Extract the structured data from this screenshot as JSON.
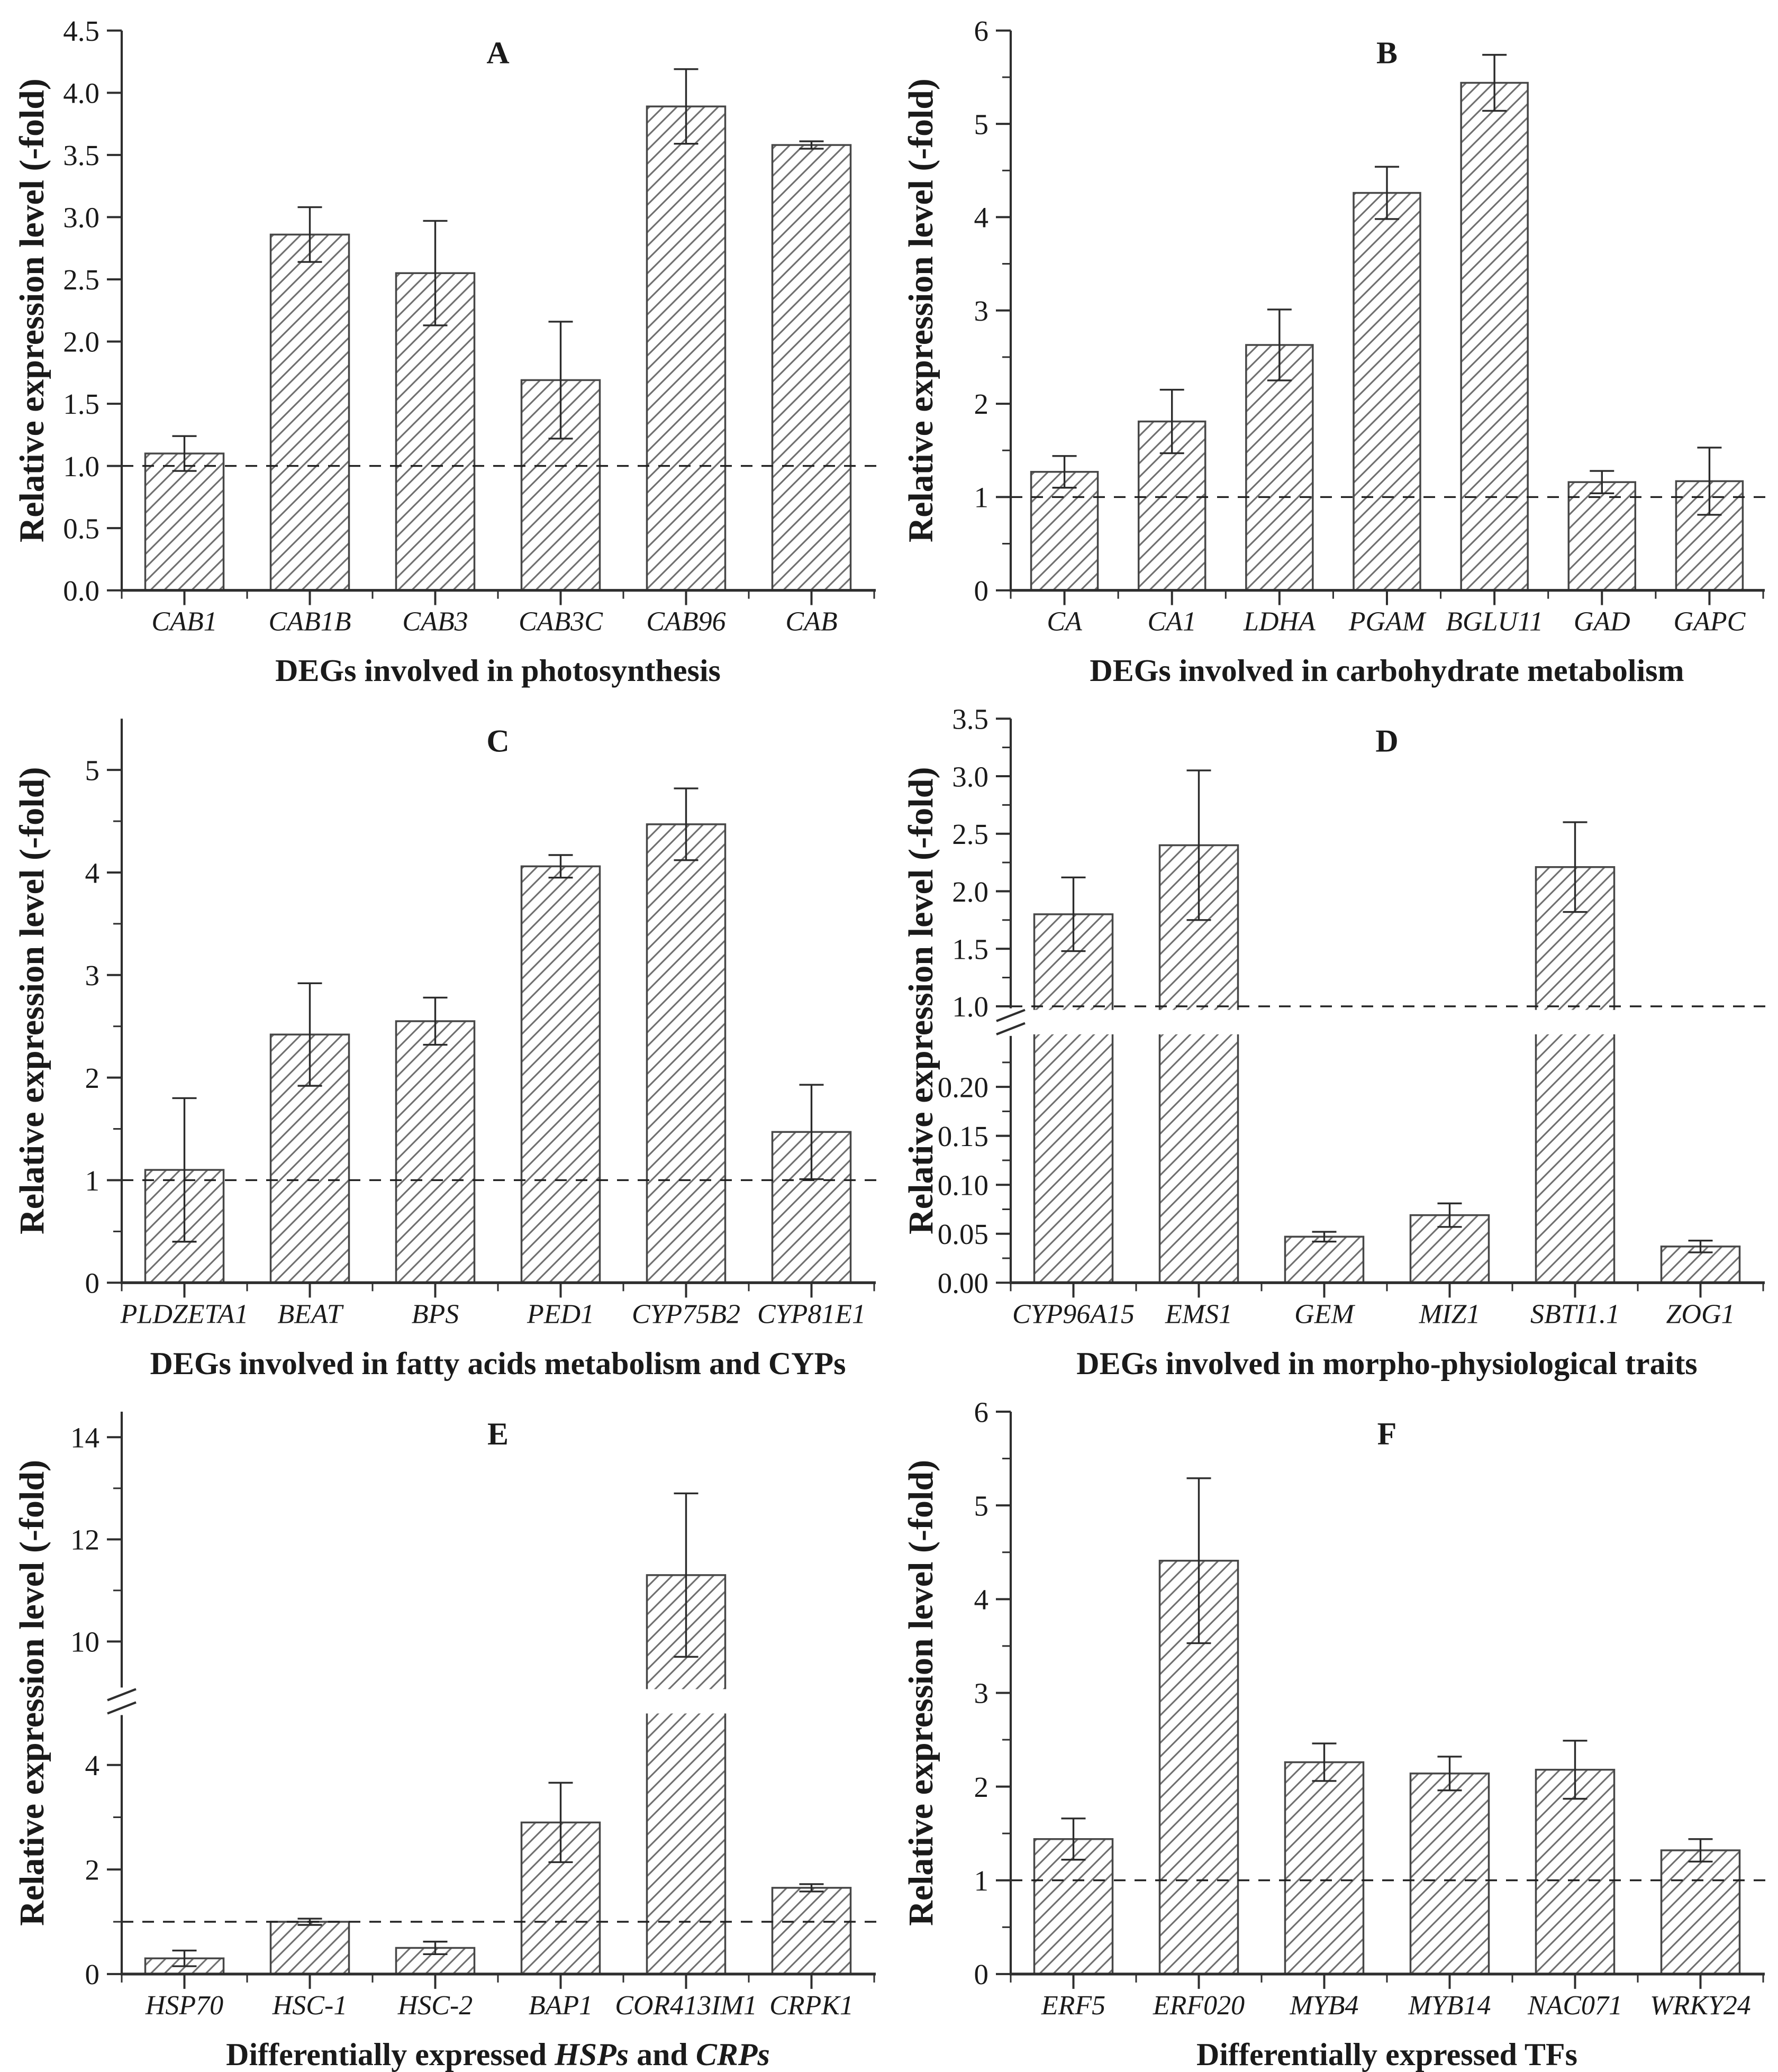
{
  "figure": {
    "background": "#ffffff",
    "text_color": "#1a1a1a",
    "axis_color": "#2e2e2e",
    "bar_fill": "#ffffff",
    "bar_stroke": "#474747",
    "hatch_color": "#6f6f6f",
    "error_color": "#2b2b2b",
    "baseline_color": "#1f1f1f"
  },
  "chart_data": [
    {
      "panel": "A",
      "type": "bar",
      "title": "A",
      "categories": [
        "CAB1",
        "CAB1B",
        "CAB3",
        "CAB3C",
        "CAB96",
        "CAB"
      ],
      "values": [
        1.1,
        2.86,
        2.55,
        1.69,
        3.89,
        3.58
      ],
      "errors": [
        0.14,
        0.22,
        0.42,
        0.47,
        0.3,
        0.03
      ],
      "xlabel": "DEGs involved in photosynthesis",
      "ylabel": "Relative expression level (-fold)",
      "baseline": 1.0,
      "y_axis": {
        "gap_frac": 0,
        "segments": [
          {
            "min": 0,
            "max": 4.5,
            "ticks": [
              0,
              0.5,
              1,
              1.5,
              2,
              2.5,
              3,
              3.5,
              4,
              4.5
            ],
            "minor": [],
            "decimals": 1,
            "frac": 1
          }
        ]
      }
    },
    {
      "panel": "B",
      "type": "bar",
      "title": "B",
      "categories": [
        "CA",
        "CA1",
        "LDHA",
        "PGAM",
        "BGLU11",
        "GAD",
        "GAPC"
      ],
      "values": [
        1.27,
        1.81,
        2.63,
        4.26,
        5.44,
        1.16,
        1.17
      ],
      "errors": [
        0.17,
        0.34,
        0.38,
        0.28,
        0.3,
        0.12,
        0.36
      ],
      "xlabel": "DEGs involved in carbohydrate metabolism",
      "ylabel": "Relative expression level (-fold)",
      "baseline": 1.0,
      "y_axis": {
        "gap_frac": 0,
        "segments": [
          {
            "min": 0,
            "max": 6,
            "ticks": [
              0,
              1,
              2,
              3,
              4,
              5,
              6
            ],
            "minor": [
              0.5,
              1.5,
              2.5,
              3.5,
              4.5,
              5.5
            ],
            "decimals": 0,
            "frac": 1
          }
        ]
      }
    },
    {
      "panel": "C",
      "type": "bar",
      "title": "C",
      "categories": [
        "PLDZETA1",
        "BEAT",
        "BPS",
        "PED1",
        "CYP75B2",
        "CYP81E1"
      ],
      "values": [
        1.1,
        2.42,
        2.55,
        4.06,
        4.47,
        1.47
      ],
      "errors": [
        0.7,
        0.5,
        0.23,
        0.11,
        0.35,
        0.46
      ],
      "xlabel": "DEGs involved in fatty acids metabolism and CYPs",
      "ylabel": "Relative expression level (-fold)",
      "baseline": 1.0,
      "y_axis": {
        "gap_frac": 0,
        "segments": [
          {
            "min": 0,
            "max": 5.5,
            "ticks": [
              0,
              1,
              2,
              3,
              4,
              5
            ],
            "minor": [
              0.5,
              1.5,
              2.5,
              3.5,
              4.5
            ],
            "decimals": 0,
            "frac": 1
          }
        ]
      }
    },
    {
      "panel": "D",
      "type": "bar",
      "title": "D",
      "categories": [
        "CYP96A15",
        "EMS1",
        "GEM",
        "MIZ1",
        "SBTI1.1",
        "ZOG1"
      ],
      "values": [
        1.8,
        2.4,
        0.047,
        0.069,
        2.21,
        0.037
      ],
      "errors": [
        0.32,
        0.65,
        0.005,
        0.012,
        0.39,
        0.006
      ],
      "xlabel": "DEGs involved in morpho-physiological traits",
      "ylabel": "Relative expression level (-fold)",
      "baseline": 1.0,
      "y_axis": {
        "gap_frac": 0.056,
        "segments": [
          {
            "min": 0,
            "max": 0.25,
            "ticks": [
              0,
              0.05,
              0.1,
              0.15,
              0.2
            ],
            "minor": [
              0.025,
              0.075,
              0.125,
              0.175,
              0.225
            ],
            "decimals": 2,
            "frac": 0.434
          },
          {
            "min": 1.0,
            "max": 3.5,
            "ticks": [
              1.0,
              1.5,
              2.0,
              2.5,
              3.0,
              3.5
            ],
            "minor": [
              1.25,
              1.75,
              2.25,
              2.75,
              3.25
            ],
            "decimals": 1,
            "frac": 0.51
          }
        ]
      }
    },
    {
      "panel": "E",
      "type": "bar",
      "title": "E",
      "categories": [
        "HSP70",
        "HSC-1",
        "HSC-2",
        "BAP1",
        "COR413IM1",
        "CRPK1"
      ],
      "values": [
        0.3,
        1.0,
        0.5,
        2.9,
        11.3,
        1.65
      ],
      "errors": [
        0.15,
        0.06,
        0.12,
        0.76,
        1.6,
        0.07
      ],
      "xlabel_parts": [
        {
          "t": "Differentially expressed ",
          "i": false
        },
        {
          "t": "HSPs",
          "i": true
        },
        {
          "t": " and ",
          "i": false
        },
        {
          "t": "CRPs",
          "i": true
        }
      ],
      "xlabel": "Differentially expressed HSPs and CRPs",
      "ylabel": "Relative expression level (-fold)",
      "baseline": 1.0,
      "y_axis": {
        "gap_frac": 0.022,
        "segments": [
          {
            "min": 0,
            "max": 5.1,
            "ticks": [
              0,
              2,
              4
            ],
            "minor": [
              1,
              3,
              5
            ],
            "decimals": 0,
            "frac": 0.474
          },
          {
            "min": 8.95,
            "max": 14.5,
            "ticks": [
              10,
              12,
              14
            ],
            "minor": [
              9,
              11,
              13
            ],
            "decimals": 0,
            "frac": 0.504
          }
        ]
      }
    },
    {
      "panel": "F",
      "type": "bar",
      "title": "F",
      "categories": [
        "ERF5",
        "ERF020",
        "MYB4",
        "MYB14",
        "NAC071",
        "WRKY24"
      ],
      "values": [
        1.44,
        4.41,
        2.26,
        2.14,
        2.18,
        1.32
      ],
      "errors": [
        0.22,
        0.88,
        0.2,
        0.18,
        0.31,
        0.12
      ],
      "xlabel": "Differentially expressed TFs",
      "ylabel": "Relative expression level (-fold)",
      "baseline": 1.0,
      "y_axis": {
        "gap_frac": 0,
        "segments": [
          {
            "min": 0,
            "max": 6,
            "ticks": [
              0,
              1,
              2,
              3,
              4,
              5,
              6
            ],
            "minor": [
              0.5,
              1.5,
              2.5,
              3.5,
              4.5,
              5.5
            ],
            "decimals": 0,
            "frac": 1
          }
        ]
      }
    }
  ]
}
